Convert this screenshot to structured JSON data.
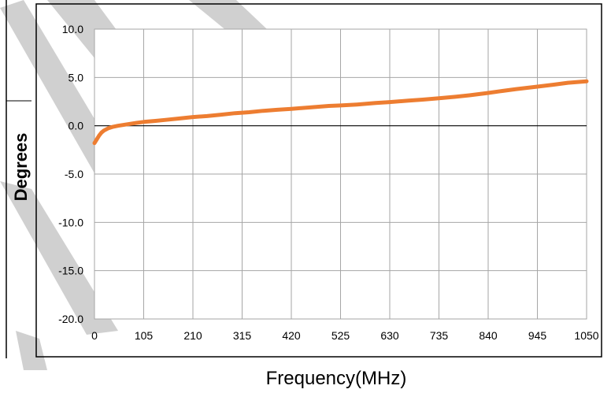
{
  "chart_data": {
    "type": "line",
    "xlabel": "Frequency(MHz)",
    "ylabel": "Degrees",
    "xlim": [
      0,
      1050
    ],
    "ylim": [
      -20,
      10
    ],
    "x_ticks": [
      "0",
      "105",
      "210",
      "315",
      "420",
      "525",
      "630",
      "735",
      "840",
      "945",
      "1050"
    ],
    "y_ticks": [
      "10.0",
      "5.0",
      "0.0",
      "-5.0",
      "-10.0",
      "-15.0",
      "-20.0"
    ],
    "grid": true,
    "legend": "none",
    "series": [
      {
        "color": "#ed7d31",
        "x": [
          0,
          5,
          10,
          15,
          20,
          30,
          40,
          50,
          70,
          90,
          105,
          130,
          150,
          180,
          210,
          240,
          270,
          300,
          330,
          360,
          390,
          420,
          460,
          500,
          525,
          560,
          600,
          630,
          670,
          700,
          735,
          770,
          800,
          840,
          870,
          900,
          945,
          980,
          1010,
          1050
        ],
        "y": [
          -1.8,
          -1.4,
          -1.0,
          -0.7,
          -0.5,
          -0.25,
          -0.1,
          0.0,
          0.15,
          0.3,
          0.4,
          0.5,
          0.6,
          0.75,
          0.9,
          1.0,
          1.15,
          1.3,
          1.4,
          1.55,
          1.65,
          1.75,
          1.9,
          2.05,
          2.1,
          2.2,
          2.35,
          2.45,
          2.6,
          2.7,
          2.85,
          3.0,
          3.15,
          3.4,
          3.6,
          3.8,
          4.05,
          4.25,
          4.45,
          4.6
        ]
      }
    ]
  }
}
